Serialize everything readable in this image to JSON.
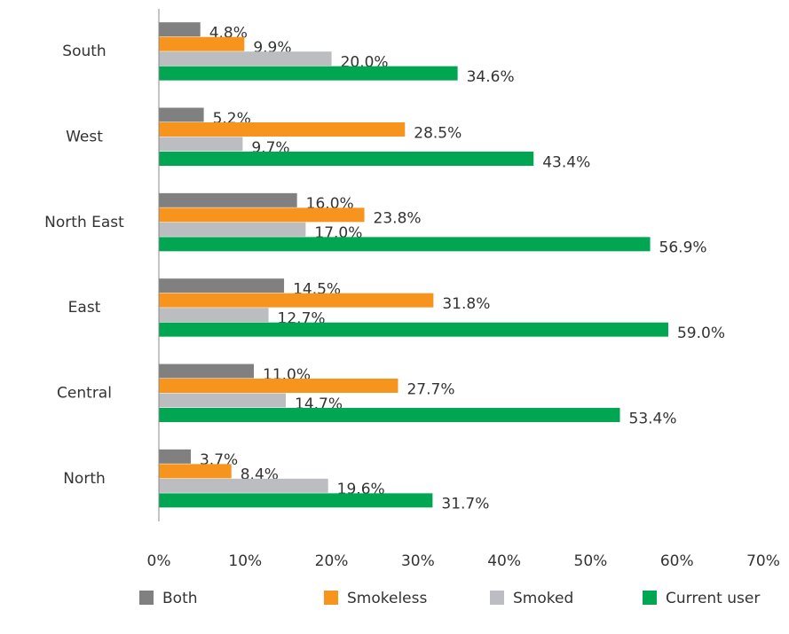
{
  "chart_data": {
    "type": "hbar",
    "categories": [
      "South",
      "West",
      "North East",
      "East",
      "Central",
      "North"
    ],
    "series": [
      {
        "name": "Both",
        "color": "#808080",
        "values": [
          4.8,
          5.2,
          16.0,
          14.5,
          11.0,
          3.7
        ],
        "value_labels": [
          "4.8%",
          "5.2%",
          "16.0%",
          "14.5%",
          "11.0%",
          "3.7%"
        ]
      },
      {
        "name": "Smokeless",
        "color": "#f7941d",
        "values": [
          9.9,
          28.5,
          23.8,
          31.8,
          27.7,
          8.4
        ],
        "value_labels": [
          "9.9%",
          "28.5%",
          "23.8%",
          "31.8%",
          "27.7%",
          "8.4%"
        ]
      },
      {
        "name": "Smoked",
        "color": "#bcbdc0",
        "values": [
          20.0,
          9.7,
          17.0,
          12.7,
          14.7,
          19.6
        ],
        "value_labels": [
          "20.0%",
          "9.7%",
          "17.0%",
          "12.7%",
          "14.7%",
          "19.6%"
        ]
      },
      {
        "name": "Current user",
        "color": "#00a651",
        "values": [
          34.6,
          43.4,
          56.9,
          59.0,
          53.4,
          31.7
        ],
        "value_labels": [
          "34.6%",
          "43.4%",
          "56.9%",
          "59.0%",
          "53.4%",
          "31.7%"
        ]
      }
    ],
    "xlim": [
      0,
      70
    ],
    "xticks": [
      {
        "value": 0,
        "label": "0%"
      },
      {
        "value": 10,
        "label": "10%"
      },
      {
        "value": 20,
        "label": "20%"
      },
      {
        "value": 30,
        "label": "30%"
      },
      {
        "value": 40,
        "label": "40%"
      },
      {
        "value": 50,
        "label": "50%"
      },
      {
        "value": 60,
        "label": "60%"
      },
      {
        "value": 70,
        "label": "70%"
      }
    ]
  }
}
